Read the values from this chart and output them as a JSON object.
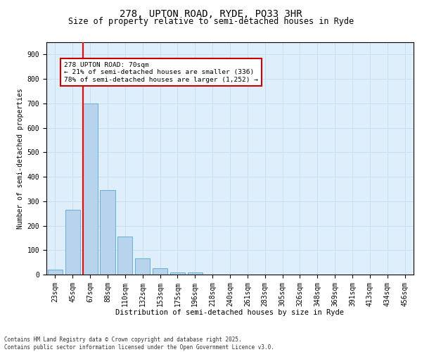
{
  "title_line1": "278, UPTON ROAD, RYDE, PO33 3HR",
  "title_line2": "Size of property relative to semi-detached houses in Ryde",
  "xlabel": "Distribution of semi-detached houses by size in Ryde",
  "ylabel": "Number of semi-detached properties",
  "bar_labels": [
    "23sqm",
    "45sqm",
    "67sqm",
    "88sqm",
    "110sqm",
    "132sqm",
    "153sqm",
    "175sqm",
    "196sqm",
    "218sqm",
    "240sqm",
    "261sqm",
    "283sqm",
    "305sqm",
    "326sqm",
    "348sqm",
    "369sqm",
    "391sqm",
    "413sqm",
    "434sqm",
    "456sqm"
  ],
  "bar_values": [
    20,
    265,
    700,
    345,
    155,
    65,
    25,
    10,
    10,
    0,
    0,
    0,
    0,
    0,
    0,
    0,
    0,
    0,
    0,
    0,
    0
  ],
  "bar_color": "#b8d4ed",
  "bar_edgecolor": "#6aaed6",
  "grid_color": "#c8dff0",
  "background_color": "#deeefa",
  "red_line_index": 2,
  "annotation_title": "278 UPTON ROAD: 70sqm",
  "annotation_line1": "← 21% of semi-detached houses are smaller (336)",
  "annotation_line2": "78% of semi-detached houses are larger (1,252) →",
  "annotation_box_facecolor": "#ffffff",
  "annotation_box_edgecolor": "#cc0000",
  "footer_line1": "Contains HM Land Registry data © Crown copyright and database right 2025.",
  "footer_line2": "Contains public sector information licensed under the Open Government Licence v3.0.",
  "ylim": [
    0,
    950
  ],
  "yticks": [
    0,
    100,
    200,
    300,
    400,
    500,
    600,
    700,
    800,
    900
  ],
  "title1_fontsize": 10,
  "title2_fontsize": 8.5,
  "xlabel_fontsize": 7.5,
  "ylabel_fontsize": 7,
  "tick_fontsize": 7,
  "ann_fontsize": 6.8
}
